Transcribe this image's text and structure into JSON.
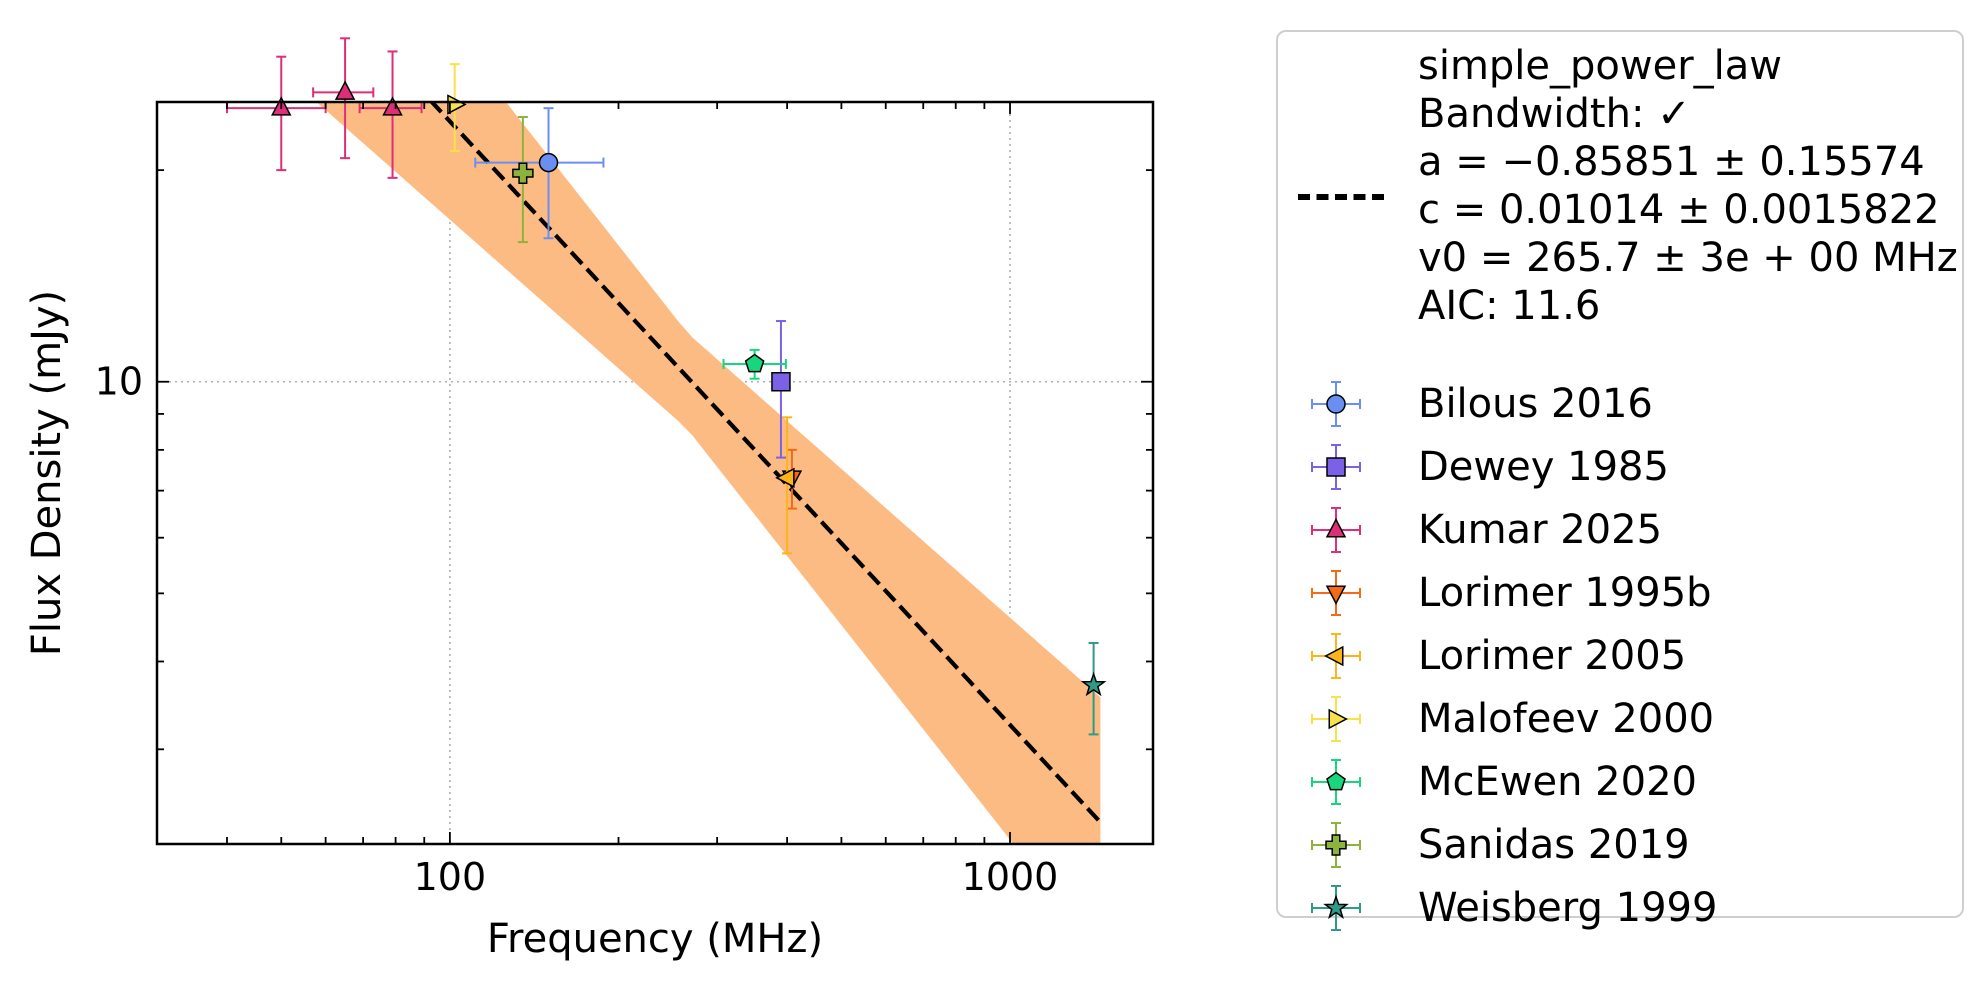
{
  "chart_data": {
    "type": "scatter",
    "xscale": "log",
    "yscale": "log",
    "xlabel": "Frequency (MHz)",
    "ylabel": "Flux Density (mJy)",
    "xlim": [
      30,
      1800
    ],
    "ylim": [
      2.2,
      25
    ],
    "x_ticks": [
      {
        "value": 100,
        "label": "100"
      },
      {
        "value": 1000,
        "label": "1000"
      }
    ],
    "y_ticks": [
      {
        "value": 10,
        "label": "10"
      }
    ],
    "grid": true,
    "legend_position": "outside-right",
    "fit": {
      "name": "simple_power_law",
      "lines": [
        "simple_power_law",
        "Bandwidth: ✓",
        "a = −0.85851 ± 0.15574",
        "c = 0.01014 ± 0.0015822",
        "v0 = 265.7 ± 3e + 00 MHz",
        "AIC: 11.6"
      ],
      "a": -0.85851,
      "a_err": 0.15574,
      "c": 0.01014,
      "c_err": 0.0015822,
      "v0": 265.7,
      "x_range": [
        40,
        1450
      ],
      "band_color": "#fdbb84",
      "line_color": "#000000"
    },
    "series": [
      {
        "name": "Bilous 2016",
        "marker": "circle",
        "color": "#6a8ff0",
        "edge": "#6a8ff0",
        "points": [
          {
            "x": 150,
            "y": 20.5,
            "xerr": [
              39,
              38
            ],
            "yerr": [
              4.5,
              4.0
            ]
          }
        ]
      },
      {
        "name": "Dewey 1985",
        "marker": "square",
        "color": "#7b61e6",
        "edge": "#7b61e6",
        "points": [
          {
            "x": 390,
            "y": 10.0,
            "xerr": [
              0,
              0
            ],
            "yerr": [
              2.2,
              2.2
            ]
          }
        ]
      },
      {
        "name": "Kumar 2025",
        "marker": "triangle-up",
        "color": "#dc2f77",
        "edge": "#dc2f77",
        "points": [
          {
            "x": 50,
            "y": 24.5,
            "xerr": [
              10,
              10
            ],
            "yerr": [
              4.5,
              4.5
            ]
          },
          {
            "x": 65,
            "y": 25.8,
            "xerr": [
              8,
              8
            ],
            "yerr": [
              5.0,
              5.0
            ]
          },
          {
            "x": 79,
            "y": 24.5,
            "xerr": [
              10,
              10
            ],
            "yerr": [
              5.0,
              5.0
            ]
          }
        ]
      },
      {
        "name": "Lorimer 1995b",
        "marker": "triangle-down",
        "color": "#f36a17",
        "edge": "#f36a17",
        "points": [
          {
            "x": 408,
            "y": 7.3,
            "xerr": [
              0,
              0
            ],
            "yerr": [
              0.7,
              0.7
            ]
          }
        ]
      },
      {
        "name": "Lorimer 2005",
        "marker": "triangle-left",
        "color": "#fbb41a",
        "edge": "#fbb41a",
        "points": [
          {
            "x": 400,
            "y": 7.3,
            "xerr": [
              0,
              0
            ],
            "yerr": [
              1.6,
              1.6
            ]
          }
        ]
      },
      {
        "name": "Malofeev 2000",
        "marker": "triangle-right",
        "color": "#f7e24b",
        "edge": "#f7e24b",
        "points": [
          {
            "x": 102,
            "y": 24.8,
            "xerr": [
              0,
              0
            ],
            "yerr": [
              3.5,
              3.5
            ]
          }
        ]
      },
      {
        "name": "McEwen 2020",
        "marker": "pentagon",
        "color": "#18d67c",
        "edge": "#18d67c",
        "points": [
          {
            "x": 350,
            "y": 10.6,
            "xerr": [
              42,
              48
            ],
            "yerr": [
              0.5,
              0.5
            ]
          }
        ]
      },
      {
        "name": "Sanidas 2019",
        "marker": "plus",
        "color": "#8cb33c",
        "edge": "#8cb33c",
        "points": [
          {
            "x": 135,
            "y": 19.8,
            "xerr": [
              0,
              0
            ],
            "yerr": [
              4.0,
              4.0
            ]
          }
        ]
      },
      {
        "name": "Weisberg 1999",
        "marker": "star",
        "color": "#2e9b88",
        "edge": "#2e9b88",
        "points": [
          {
            "x": 1410,
            "y": 3.7,
            "xerr": [
              0,
              0
            ],
            "yerr": [
              0.55,
              0.55
            ]
          }
        ]
      }
    ]
  }
}
